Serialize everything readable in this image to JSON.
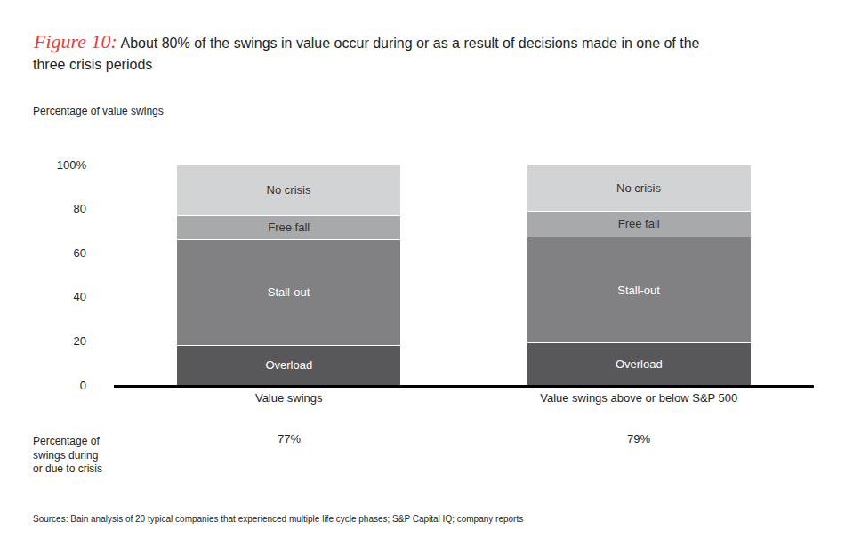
{
  "chart_data": {
    "type": "bar",
    "stacked": true,
    "title_prefix": "Figure 10:",
    "title_lines": [
      "About 80% of the swings in value occur during or as a result of decisions made in one of the",
      "three crisis periods"
    ],
    "subtitle": "Percentage of value swings",
    "categories": [
      "Value swings",
      "Value swings above or below S&P 500"
    ],
    "series": [
      {
        "name": "Overload",
        "color": "#58585a",
        "values": [
          18,
          19
        ]
      },
      {
        "name": "Stall-out",
        "color": "#818184",
        "values": [
          48,
          48
        ]
      },
      {
        "name": "Free fall",
        "color": "#a8a9ab",
        "values": [
          11,
          12
        ]
      },
      {
        "name": "No crisis",
        "color": "#d2d3d5",
        "values": [
          23,
          21
        ]
      }
    ],
    "ylim": [
      0,
      100
    ],
    "yticks": [
      0,
      20,
      40,
      60,
      80,
      {
        "value": 100,
        "label": "100%"
      }
    ],
    "grid": false,
    "crisis_row": {
      "label_lines": [
        "Percentage of",
        "swings during",
        "or due to crisis"
      ],
      "labels": [
        "77%",
        "79%"
      ]
    },
    "source": "Sources: Bain analysis of 20 typical companies that experienced multiple life cycle phases; S&P Capital IQ; company reports"
  }
}
